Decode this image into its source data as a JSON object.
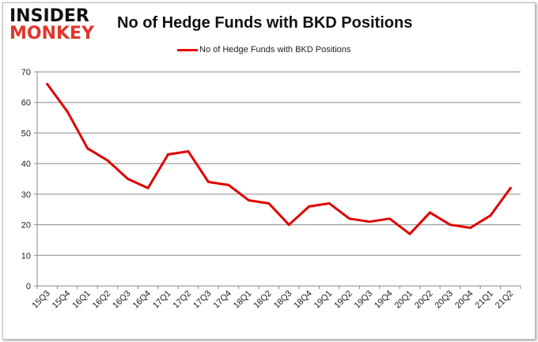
{
  "logo": {
    "line1": "INSIDER",
    "line2": "MONKEY"
  },
  "chart_data": {
    "type": "line",
    "title": "No of Hedge Funds with BKD Positions",
    "xlabel": "",
    "ylabel": "",
    "ylim": [
      0,
      70
    ],
    "yticks": [
      0,
      10,
      20,
      30,
      40,
      50,
      60,
      70
    ],
    "grid": true,
    "legend_position": "top",
    "categories": [
      "15Q3",
      "15Q4",
      "16Q1",
      "16Q2",
      "16Q3",
      "16Q4",
      "17Q1",
      "17Q2",
      "17Q3",
      "17Q4",
      "18Q1",
      "18Q2",
      "18Q3",
      "18Q4",
      "19Q1",
      "19Q2",
      "19Q3",
      "19Q4",
      "20Q1",
      "20Q2",
      "20Q3",
      "20Q4",
      "21Q1",
      "21Q2"
    ],
    "series": [
      {
        "name": "No of Hedge Funds with BKD Positions",
        "color": "#e00000",
        "values": [
          66,
          57,
          45,
          41,
          35,
          32,
          43,
          44,
          34,
          33,
          28,
          27,
          20,
          26,
          27,
          22,
          21,
          22,
          17,
          24,
          20,
          19,
          23,
          32
        ]
      }
    ]
  }
}
